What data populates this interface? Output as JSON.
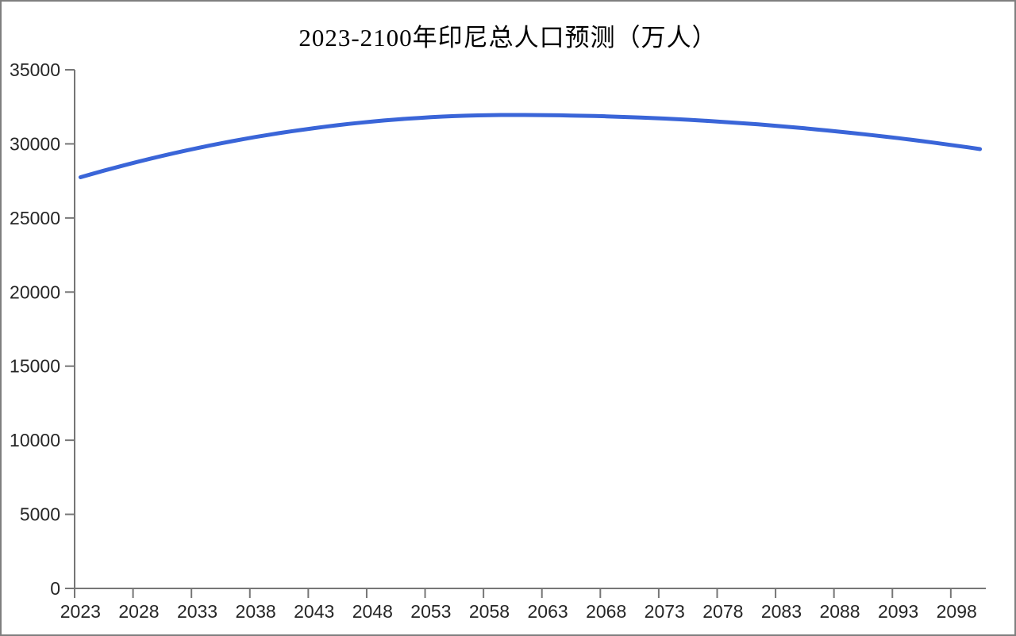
{
  "chart_data": {
    "type": "line",
    "title": "2023-2100年印尼总人口预测（万人）",
    "xlabel": "",
    "ylabel": "",
    "ylim": [
      0,
      35000
    ],
    "grid": false,
    "legend": null,
    "line_color": "#3a65d8",
    "axis_color": "#767676",
    "tick_label_color": "#262626",
    "line_width": 5,
    "y_ticks": [
      0,
      5000,
      10000,
      15000,
      20000,
      25000,
      30000,
      35000
    ],
    "x_tick_labels": [
      "2023",
      "2028",
      "2033",
      "2038",
      "2043",
      "2048",
      "2053",
      "2058",
      "2063",
      "2068",
      "2073",
      "2078",
      "2083",
      "2088",
      "2093",
      "2098"
    ],
    "x_label_interval": 5,
    "years": [
      2023,
      2024,
      2025,
      2026,
      2027,
      2028,
      2029,
      2030,
      2031,
      2032,
      2033,
      2034,
      2035,
      2036,
      2037,
      2038,
      2039,
      2040,
      2041,
      2042,
      2043,
      2044,
      2045,
      2046,
      2047,
      2048,
      2049,
      2050,
      2051,
      2052,
      2053,
      2054,
      2055,
      2056,
      2057,
      2058,
      2059,
      2060,
      2061,
      2062,
      2063,
      2064,
      2065,
      2066,
      2067,
      2068,
      2069,
      2070,
      2071,
      2072,
      2073,
      2074,
      2075,
      2076,
      2077,
      2078,
      2079,
      2080,
      2081,
      2082,
      2083,
      2084,
      2085,
      2086,
      2087,
      2088,
      2089,
      2090,
      2091,
      2092,
      2093,
      2094,
      2095,
      2096,
      2097,
      2098,
      2099,
      2100
    ],
    "values": [
      27750,
      27974,
      28192,
      28403,
      28609,
      28808,
      29002,
      29189,
      29370,
      29545,
      29713,
      29876,
      30033,
      30183,
      30327,
      30465,
      30597,
      30723,
      30842,
      30956,
      31063,
      31165,
      31260,
      31349,
      31431,
      31508,
      31579,
      31643,
      31702,
      31754,
      31800,
      31840,
      31873,
      31901,
      31922,
      31938,
      31947,
      31950,
      31949,
      31944,
      31937,
      31927,
      31914,
      31898,
      31880,
      31858,
      31834,
      31806,
      31776,
      31743,
      31707,
      31668,
      31627,
      31582,
      31535,
      31484,
      31431,
      31375,
      31316,
      31254,
      31190,
      31122,
      31052,
      30978,
      30902,
      30823,
      30741,
      30656,
      30569,
      30478,
      30385,
      30288,
      30189,
      30087,
      29982,
      29874,
      29764,
      29650
    ]
  }
}
